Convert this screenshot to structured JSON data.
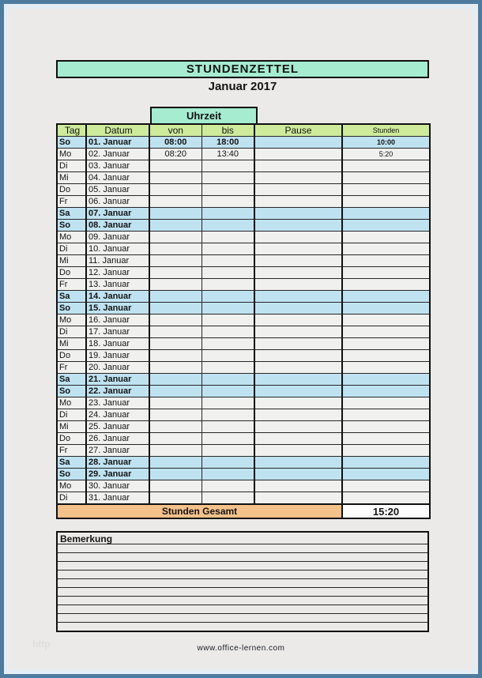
{
  "page": {
    "title": "STUNDENZETTEL",
    "subtitle": "Januar 2017",
    "footer": "www.office-lernen.com",
    "watermark": "http"
  },
  "table": {
    "uhrzeit_label": "Uhrzeit",
    "columns": [
      "Tag",
      "Datum",
      "von",
      "bis",
      "Pause",
      "Stunden"
    ],
    "total_label": "Stunden Gesamt",
    "total_value": "15:20",
    "rows": [
      {
        "day": "So",
        "date": "01. Januar",
        "von": "08:00",
        "bis": "18:00",
        "pause": "",
        "stunden": "10:00",
        "weekend": true
      },
      {
        "day": "Mo",
        "date": "02. Januar",
        "von": "08:20",
        "bis": "13:40",
        "pause": "",
        "stunden": "5:20",
        "weekend": false
      },
      {
        "day": "Di",
        "date": "03. Januar",
        "von": "",
        "bis": "",
        "pause": "",
        "stunden": "",
        "weekend": false
      },
      {
        "day": "Mi",
        "date": "04. Januar",
        "von": "",
        "bis": "",
        "pause": "",
        "stunden": "",
        "weekend": false
      },
      {
        "day": "Do",
        "date": "05. Januar",
        "von": "",
        "bis": "",
        "pause": "",
        "stunden": "",
        "weekend": false
      },
      {
        "day": "Fr",
        "date": "06. Januar",
        "von": "",
        "bis": "",
        "pause": "",
        "stunden": "",
        "weekend": false
      },
      {
        "day": "Sa",
        "date": "07. Januar",
        "von": "",
        "bis": "",
        "pause": "",
        "stunden": "",
        "weekend": true
      },
      {
        "day": "So",
        "date": "08. Januar",
        "von": "",
        "bis": "",
        "pause": "",
        "stunden": "",
        "weekend": true
      },
      {
        "day": "Mo",
        "date": "09. Januar",
        "von": "",
        "bis": "",
        "pause": "",
        "stunden": "",
        "weekend": false
      },
      {
        "day": "Di",
        "date": "10. Januar",
        "von": "",
        "bis": "",
        "pause": "",
        "stunden": "",
        "weekend": false
      },
      {
        "day": "Mi",
        "date": "11. Januar",
        "von": "",
        "bis": "",
        "pause": "",
        "stunden": "",
        "weekend": false
      },
      {
        "day": "Do",
        "date": "12. Januar",
        "von": "",
        "bis": "",
        "pause": "",
        "stunden": "",
        "weekend": false
      },
      {
        "day": "Fr",
        "date": "13. Januar",
        "von": "",
        "bis": "",
        "pause": "",
        "stunden": "",
        "weekend": false
      },
      {
        "day": "Sa",
        "date": "14. Januar",
        "von": "",
        "bis": "",
        "pause": "",
        "stunden": "",
        "weekend": true
      },
      {
        "day": "So",
        "date": "15. Januar",
        "von": "",
        "bis": "",
        "pause": "",
        "stunden": "",
        "weekend": true
      },
      {
        "day": "Mo",
        "date": "16. Januar",
        "von": "",
        "bis": "",
        "pause": "",
        "stunden": "",
        "weekend": false
      },
      {
        "day": "Di",
        "date": "17. Januar",
        "von": "",
        "bis": "",
        "pause": "",
        "stunden": "",
        "weekend": false
      },
      {
        "day": "Mi",
        "date": "18. Januar",
        "von": "",
        "bis": "",
        "pause": "",
        "stunden": "",
        "weekend": false
      },
      {
        "day": "Do",
        "date": "19. Januar",
        "von": "",
        "bis": "",
        "pause": "",
        "stunden": "",
        "weekend": false
      },
      {
        "day": "Fr",
        "date": "20. Januar",
        "von": "",
        "bis": "",
        "pause": "",
        "stunden": "",
        "weekend": false
      },
      {
        "day": "Sa",
        "date": "21. Januar",
        "von": "",
        "bis": "",
        "pause": "",
        "stunden": "",
        "weekend": true
      },
      {
        "day": "So",
        "date": "22. Januar",
        "von": "",
        "bis": "",
        "pause": "",
        "stunden": "",
        "weekend": true
      },
      {
        "day": "Mo",
        "date": "23. Januar",
        "von": "",
        "bis": "",
        "pause": "",
        "stunden": "",
        "weekend": false
      },
      {
        "day": "Di",
        "date": "24. Januar",
        "von": "",
        "bis": "",
        "pause": "",
        "stunden": "",
        "weekend": false
      },
      {
        "day": "Mi",
        "date": "25. Januar",
        "von": "",
        "bis": "",
        "pause": "",
        "stunden": "",
        "weekend": false
      },
      {
        "day": "Do",
        "date": "26. Januar",
        "von": "",
        "bis": "",
        "pause": "",
        "stunden": "",
        "weekend": false
      },
      {
        "day": "Fr",
        "date": "27. Januar",
        "von": "",
        "bis": "",
        "pause": "",
        "stunden": "",
        "weekend": false
      },
      {
        "day": "Sa",
        "date": "28. Januar",
        "von": "",
        "bis": "",
        "pause": "",
        "stunden": "",
        "weekend": true
      },
      {
        "day": "So",
        "date": "29. Januar",
        "von": "",
        "bis": "",
        "pause": "",
        "stunden": "",
        "weekend": true
      },
      {
        "day": "Mo",
        "date": "30. Januar",
        "von": "",
        "bis": "",
        "pause": "",
        "stunden": "",
        "weekend": false
      },
      {
        "day": "Di",
        "date": "31. Januar",
        "von": "",
        "bis": "",
        "pause": "",
        "stunden": "",
        "weekend": false
      }
    ]
  },
  "bemerkung": {
    "label": "Bemerkung"
  },
  "colors": {
    "page_bg": "#ebeae8",
    "page_border": "#4f7b9e",
    "page_border_inner": "#e4edf3",
    "mint": "#a5ecd1",
    "green": "#ceeb9c",
    "weekend_bg": "#bfe2f1",
    "weekday_bg": "#f0f0ee",
    "orange": "#f4c18b",
    "line_dark": "#101010",
    "line_row": "#262626"
  }
}
